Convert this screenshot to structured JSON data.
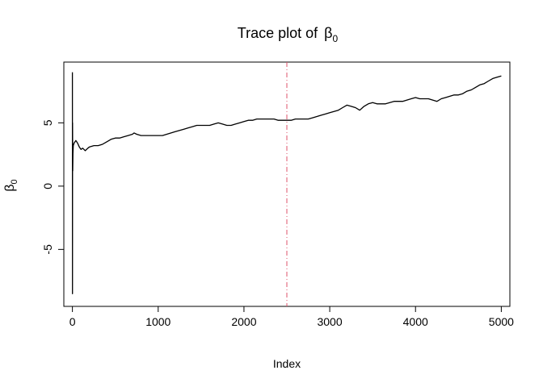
{
  "chart_data": {
    "type": "line",
    "title": "Trace plot of",
    "title_symbol": "β",
    "title_subscript": "0",
    "xlabel": "Index",
    "ylabel_symbol": "β",
    "ylabel_subscript": "0",
    "xlim": [
      -100,
      5100
    ],
    "ylim": [
      -9.5,
      9.8
    ],
    "x_ticks": [
      0,
      1000,
      2000,
      3000,
      4000,
      5000
    ],
    "x_tick_labels": [
      "0",
      "1000",
      "2000",
      "3000",
      "4000",
      "5000"
    ],
    "y_ticks": [
      -5,
      0,
      5
    ],
    "y_tick_labels": [
      "-5",
      "0",
      "5"
    ],
    "grid": false,
    "legend": "none",
    "line_color": "#000000",
    "vline": {
      "x": 2500,
      "color": "#DF536B",
      "style": "dotdash"
    },
    "series": [
      {
        "points": [
          [
            0,
            9.0
          ],
          [
            1,
            -8.5
          ],
          [
            2,
            5.0
          ],
          [
            4,
            1.2
          ],
          [
            6,
            2.6
          ],
          [
            10,
            3.2
          ],
          [
            20,
            3.4
          ],
          [
            30,
            3.5
          ],
          [
            40,
            3.6
          ],
          [
            60,
            3.4
          ],
          [
            80,
            3.1
          ],
          [
            100,
            2.9
          ],
          [
            120,
            3.0
          ],
          [
            150,
            2.8
          ],
          [
            180,
            3.0
          ],
          [
            200,
            3.1
          ],
          [
            250,
            3.2
          ],
          [
            300,
            3.2
          ],
          [
            350,
            3.3
          ],
          [
            400,
            3.5
          ],
          [
            450,
            3.7
          ],
          [
            500,
            3.8
          ],
          [
            550,
            3.8
          ],
          [
            600,
            3.9
          ],
          [
            650,
            4.0
          ],
          [
            700,
            4.1
          ],
          [
            720,
            4.2
          ],
          [
            750,
            4.1
          ],
          [
            800,
            4.0
          ],
          [
            850,
            4.0
          ],
          [
            900,
            4.0
          ],
          [
            950,
            4.0
          ],
          [
            1000,
            4.0
          ],
          [
            1050,
            4.0
          ],
          [
            1100,
            4.1
          ],
          [
            1150,
            4.2
          ],
          [
            1200,
            4.3
          ],
          [
            1250,
            4.4
          ],
          [
            1300,
            4.5
          ],
          [
            1350,
            4.6
          ],
          [
            1400,
            4.7
          ],
          [
            1450,
            4.8
          ],
          [
            1500,
            4.8
          ],
          [
            1550,
            4.8
          ],
          [
            1600,
            4.8
          ],
          [
            1650,
            4.9
          ],
          [
            1700,
            5.0
          ],
          [
            1750,
            4.9
          ],
          [
            1800,
            4.8
          ],
          [
            1850,
            4.8
          ],
          [
            1900,
            4.9
          ],
          [
            1950,
            5.0
          ],
          [
            2000,
            5.1
          ],
          [
            2050,
            5.2
          ],
          [
            2100,
            5.2
          ],
          [
            2150,
            5.3
          ],
          [
            2200,
            5.3
          ],
          [
            2250,
            5.3
          ],
          [
            2300,
            5.3
          ],
          [
            2350,
            5.3
          ],
          [
            2400,
            5.2
          ],
          [
            2450,
            5.2
          ],
          [
            2500,
            5.2
          ],
          [
            2550,
            5.2
          ],
          [
            2600,
            5.3
          ],
          [
            2650,
            5.3
          ],
          [
            2700,
            5.3
          ],
          [
            2750,
            5.3
          ],
          [
            2800,
            5.4
          ],
          [
            2850,
            5.5
          ],
          [
            2900,
            5.6
          ],
          [
            2950,
            5.7
          ],
          [
            3000,
            5.8
          ],
          [
            3050,
            5.9
          ],
          [
            3100,
            6.0
          ],
          [
            3150,
            6.2
          ],
          [
            3200,
            6.4
          ],
          [
            3250,
            6.3
          ],
          [
            3300,
            6.2
          ],
          [
            3350,
            6.0
          ],
          [
            3400,
            6.3
          ],
          [
            3450,
            6.5
          ],
          [
            3500,
            6.6
          ],
          [
            3550,
            6.5
          ],
          [
            3600,
            6.5
          ],
          [
            3650,
            6.5
          ],
          [
            3700,
            6.6
          ],
          [
            3750,
            6.7
          ],
          [
            3800,
            6.7
          ],
          [
            3850,
            6.7
          ],
          [
            3900,
            6.8
          ],
          [
            3950,
            6.9
          ],
          [
            4000,
            7.0
          ],
          [
            4050,
            6.9
          ],
          [
            4100,
            6.9
          ],
          [
            4150,
            6.9
          ],
          [
            4200,
            6.8
          ],
          [
            4250,
            6.7
          ],
          [
            4300,
            6.9
          ],
          [
            4350,
            7.0
          ],
          [
            4400,
            7.1
          ],
          [
            4450,
            7.2
          ],
          [
            4500,
            7.2
          ],
          [
            4550,
            7.3
          ],
          [
            4600,
            7.5
          ],
          [
            4650,
            7.6
          ],
          [
            4700,
            7.8
          ],
          [
            4750,
            8.0
          ],
          [
            4800,
            8.1
          ],
          [
            4850,
            8.3
          ],
          [
            4900,
            8.5
          ],
          [
            4950,
            8.6
          ],
          [
            5000,
            8.7
          ]
        ]
      }
    ]
  }
}
